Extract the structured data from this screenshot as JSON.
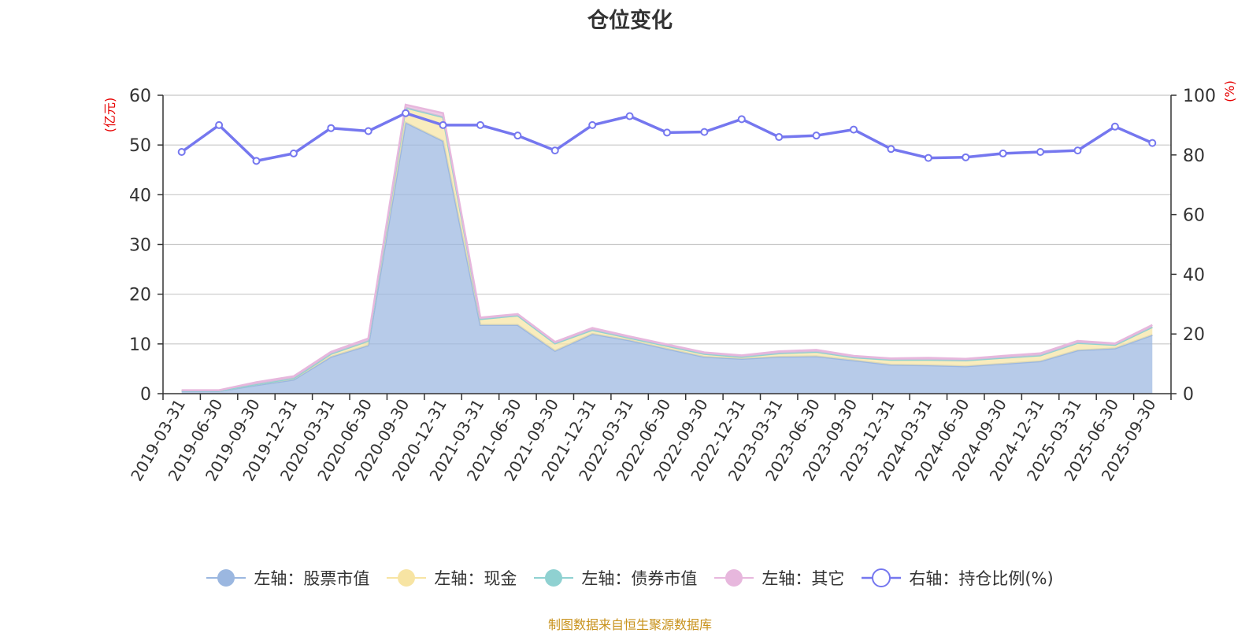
{
  "chart_data": {
    "type": "area",
    "title": "仓位变化",
    "left_axis_unit": "(亿元)",
    "right_axis_unit": "(%)",
    "left_ylim": [
      0,
      60
    ],
    "left_ticks": [
      0,
      10,
      20,
      30,
      40,
      50,
      60
    ],
    "right_ylim": [
      0,
      100
    ],
    "right_ticks": [
      0,
      20,
      40,
      60,
      80,
      100
    ],
    "tick_labels": [
      "2019-03-31",
      "2019-06-30",
      "2019-09-30",
      "2019-12-31",
      "2020-03-31",
      "2020-06-30",
      "2020-09-30",
      "2020-12-31",
      "2021-03-31",
      "2021-06-30",
      "2021-09-30",
      "2021-12-31",
      "2022-03-31",
      "2022-06-30",
      "2022-09-30",
      "2022-12-31",
      "2023-03-31",
      "2023-06-30",
      "2023-09-30",
      "2023-12-31",
      "2024-03-31",
      "2024-06-30",
      "2024-09-30",
      "2024-12-31",
      "2025-03-31",
      "2025-06-30",
      "2025-09-30"
    ],
    "series": [
      {
        "name": "左轴：股票市值",
        "axis": "left",
        "kind": "stacked-area",
        "color": "#9bb7e0",
        "values": [
          0.5,
          0.5,
          1.7,
          2.8,
          7.4,
          9.7,
          54.5,
          50.8,
          13.8,
          13.8,
          8.6,
          12.0,
          10.7,
          9.0,
          7.4,
          7.0,
          7.4,
          7.5,
          6.7,
          5.8,
          5.7,
          5.5,
          6.0,
          6.5,
          8.7,
          9.1,
          11.8
        ]
      },
      {
        "name": "左轴：现金",
        "axis": "left",
        "kind": "stacked-area",
        "color": "#f7e4a3",
        "values": [
          0.1,
          0.1,
          0.2,
          0.3,
          0.6,
          0.9,
          3.0,
          4.8,
          1.2,
          1.9,
          1.5,
          0.8,
          0.5,
          0.6,
          0.6,
          0.4,
          0.7,
          0.9,
          0.6,
          1.0,
          1.1,
          1.2,
          1.2,
          1.2,
          1.5,
          0.7,
          1.6
        ]
      },
      {
        "name": "左轴：债券市值",
        "axis": "left",
        "kind": "stacked-area",
        "color": "#8fd1d1",
        "values": [
          0,
          0,
          0,
          0,
          0,
          0,
          0,
          0,
          0,
          0,
          0,
          0,
          0,
          0,
          0,
          0,
          0,
          0,
          0,
          0,
          0,
          0,
          0,
          0,
          0,
          0,
          0
        ]
      },
      {
        "name": "左轴：其它",
        "axis": "left",
        "kind": "stacked-area",
        "color": "#e7b7dd",
        "values": [
          0.1,
          0.1,
          0.4,
          0.4,
          0.4,
          0.5,
          0.6,
          0.8,
          0.3,
          0.3,
          0.3,
          0.4,
          0.3,
          0.3,
          0.3,
          0.3,
          0.4,
          0.4,
          0.3,
          0.3,
          0.4,
          0.3,
          0.4,
          0.4,
          0.4,
          0.3,
          0.4
        ]
      },
      {
        "name": "右轴：持仓比例(%)",
        "axis": "right",
        "kind": "line",
        "color": "#7577ef",
        "values": [
          81,
          90,
          78,
          80.5,
          89,
          88,
          94,
          90,
          90,
          86.5,
          81.5,
          90,
          93,
          87.5,
          87.7,
          92,
          86,
          86.5,
          88.5,
          82,
          79,
          79.2,
          80.5,
          81,
          81.5,
          89.5,
          84
        ]
      }
    ]
  },
  "source_text": "制图数据来自恒生聚源数据库"
}
